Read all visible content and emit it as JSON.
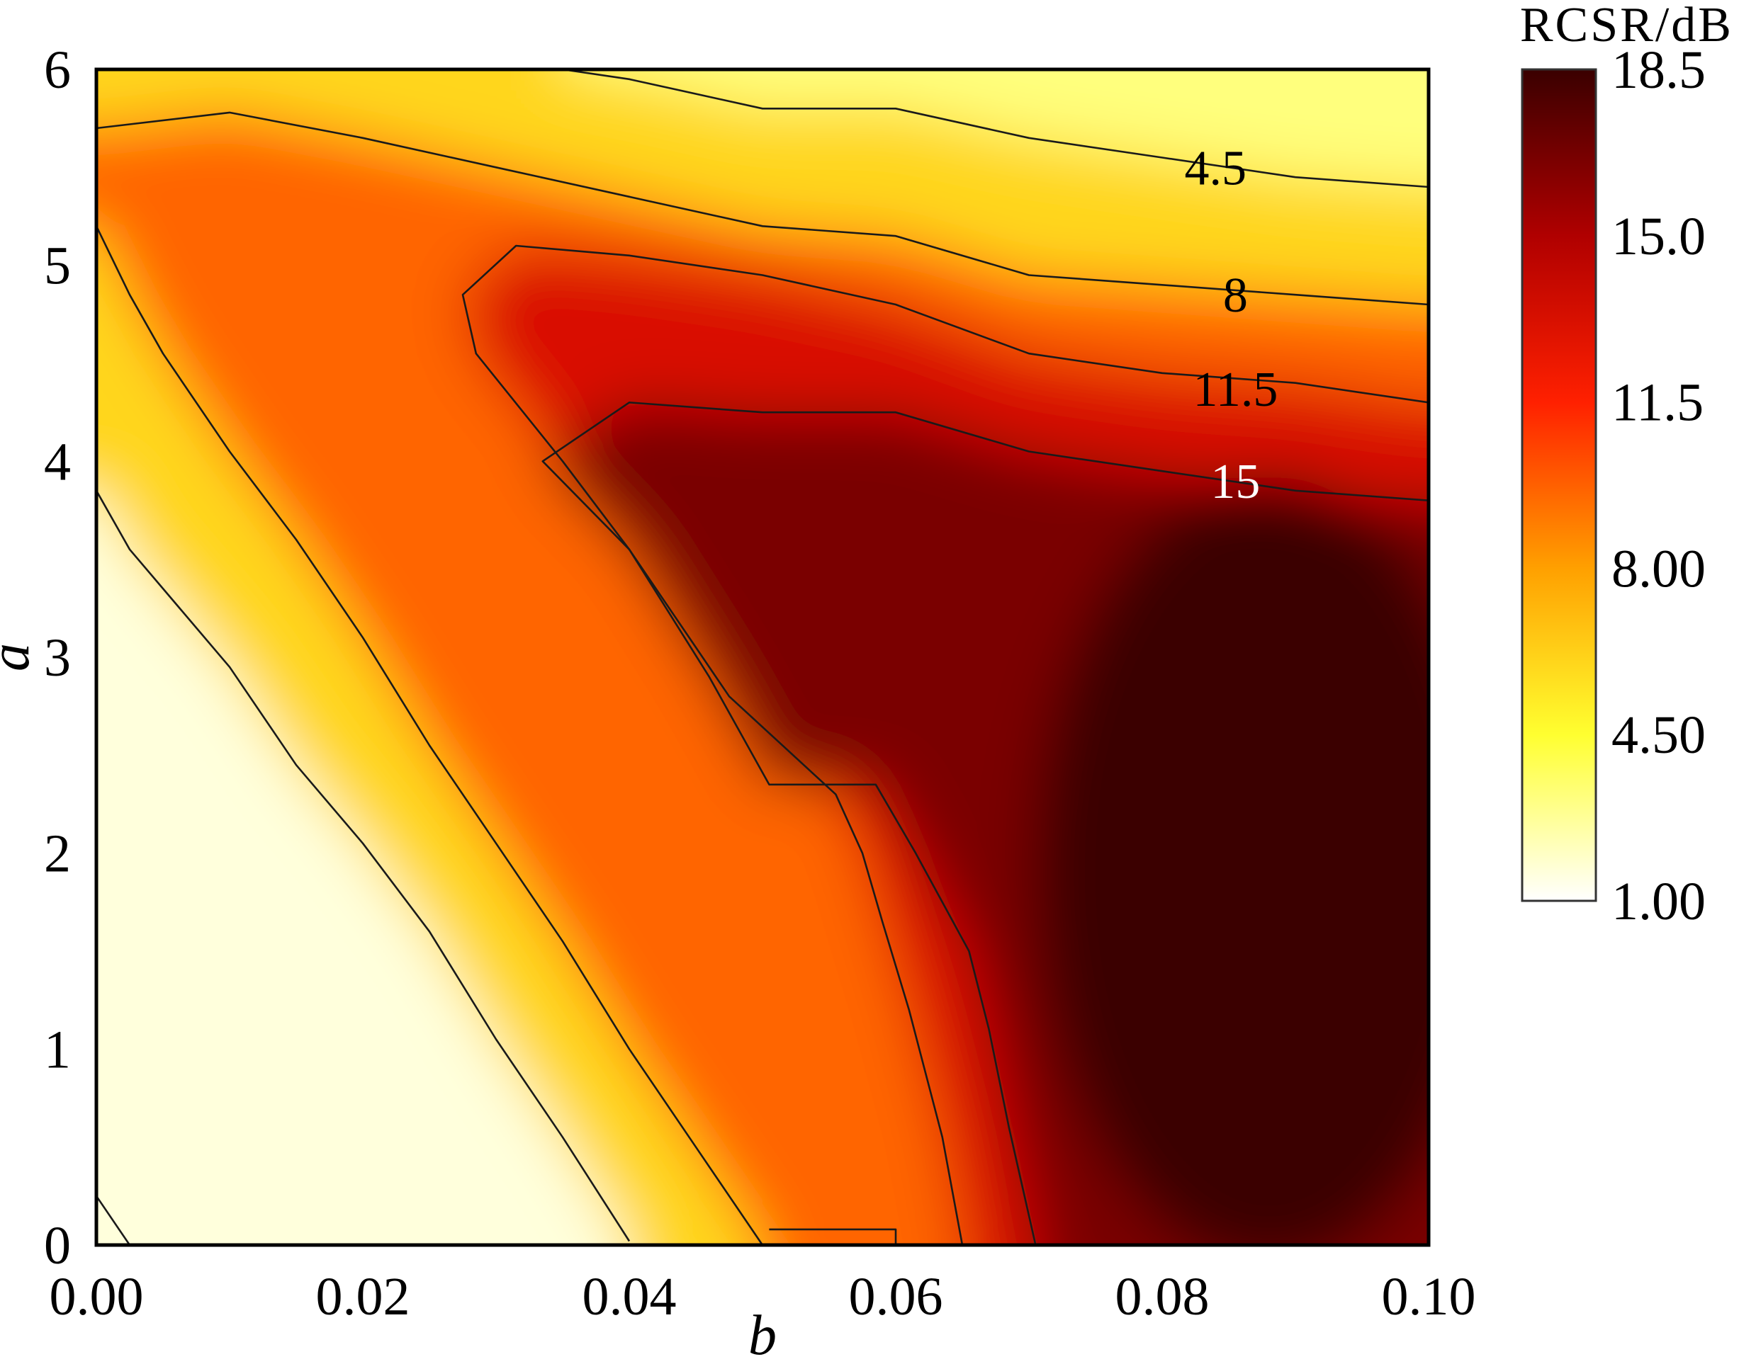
{
  "chart_data": {
    "type": "heatmap",
    "title": "",
    "xlabel": "b",
    "ylabel": "a",
    "xlim": [
      0,
      0.1
    ],
    "ylim": [
      0,
      6
    ],
    "x_ticks": [
      0,
      0.02,
      0.04,
      0.06,
      0.08,
      0.1
    ],
    "x_tick_labels": [
      "0.00",
      "0.02",
      "0.04",
      "0.06",
      "0.08",
      "0.10"
    ],
    "y_ticks": [
      0,
      1,
      2,
      3,
      4,
      5,
      6
    ],
    "y_tick_labels": [
      "0",
      "1",
      "2",
      "3",
      "4",
      "5",
      "6"
    ],
    "colorbar": {
      "title": "RCSR/dB",
      "range": [
        1,
        18.5
      ],
      "ticks": [
        1,
        4.5,
        8,
        11.5,
        15,
        18.5
      ],
      "tick_labels": [
        "1.00",
        "4.50",
        "8.00",
        "11.5",
        "15.0",
        "18.5"
      ],
      "colormap": [
        "#ffffff",
        "#ffff30",
        "#ffa000",
        "#ff2000",
        "#b00000",
        "#3a0000"
      ]
    },
    "contours": [
      {
        "level": 1,
        "label": "",
        "points": [
          [
            0,
            0.25
          ],
          [
            0.0025,
            0
          ]
        ]
      },
      {
        "level": 4.5,
        "label": "4.5",
        "label_at": [
          0.084,
          5.5
        ],
        "label_color": "#000000",
        "points": [
          [
            0,
            3.85
          ],
          [
            0.0025,
            3.55
          ],
          [
            0.01,
            2.95
          ],
          [
            0.015,
            2.45
          ],
          [
            0.02,
            2.05
          ],
          [
            0.025,
            1.6
          ],
          [
            0.03,
            1.05
          ],
          [
            0.035,
            0.55
          ],
          [
            0.04,
            0.02
          ]
        ]
      },
      {
        "level": 4.5,
        "label": "",
        "points": [
          [
            0.035,
            6.0
          ],
          [
            0.04,
            5.95
          ],
          [
            0.05,
            5.8
          ],
          [
            0.06,
            5.8
          ],
          [
            0.07,
            5.65
          ],
          [
            0.08,
            5.55
          ],
          [
            0.09,
            5.45
          ],
          [
            0.1,
            5.4
          ]
        ]
      },
      {
        "level": 8,
        "label": "8",
        "label_at": [
          0.0855,
          4.85
        ],
        "label_color": "#000000",
        "points": [
          [
            0,
            5.2
          ],
          [
            0.0025,
            4.85
          ],
          [
            0.005,
            4.55
          ],
          [
            0.01,
            4.05
          ],
          [
            0.015,
            3.6
          ],
          [
            0.02,
            3.1
          ],
          [
            0.025,
            2.55
          ],
          [
            0.03,
            2.05
          ],
          [
            0.035,
            1.55
          ],
          [
            0.04,
            1.0
          ],
          [
            0.045,
            0.5
          ],
          [
            0.05,
            0.0
          ]
        ]
      },
      {
        "level": 8,
        "label": "",
        "points": [
          [
            0,
            5.7
          ],
          [
            0.01,
            5.78
          ],
          [
            0.02,
            5.65
          ],
          [
            0.03,
            5.5
          ],
          [
            0.04,
            5.35
          ],
          [
            0.05,
            5.2
          ],
          [
            0.06,
            5.15
          ],
          [
            0.07,
            4.95
          ],
          [
            0.08,
            4.9
          ],
          [
            0.09,
            4.85
          ],
          [
            0.1,
            4.8
          ]
        ]
      },
      {
        "level": 11.5,
        "label": "11.5",
        "label_at": [
          0.0855,
          4.37
        ],
        "label_color": "#000000",
        "points": [
          [
            0.065,
            0.0
          ],
          [
            0.0635,
            0.55
          ],
          [
            0.061,
            1.2
          ],
          [
            0.059,
            1.65
          ],
          [
            0.0575,
            2.0
          ],
          [
            0.0555,
            2.3
          ],
          [
            0.0475,
            2.8
          ],
          [
            0.04,
            3.55
          ],
          [
            0.035,
            4.0
          ],
          [
            0.0285,
            4.55
          ],
          [
            0.0275,
            4.85
          ],
          [
            0.0315,
            5.1
          ],
          [
            0.04,
            5.05
          ],
          [
            0.05,
            4.95
          ],
          [
            0.06,
            4.8
          ],
          [
            0.07,
            4.55
          ],
          [
            0.08,
            4.45
          ],
          [
            0.09,
            4.4
          ],
          [
            0.1,
            4.3
          ]
        ]
      },
      {
        "level": 11.5,
        "label": "",
        "points": [
          [
            0.0505,
            0.08
          ],
          [
            0.06,
            0.08
          ],
          [
            0.06,
            0.0
          ]
        ]
      },
      {
        "level": 15,
        "label": "15",
        "label_at": [
          0.0855,
          3.9
        ],
        "label_color": "#ffffff",
        "points": [
          [
            0.0705,
            0.0
          ],
          [
            0.07,
            0.15
          ],
          [
            0.0685,
            0.6
          ],
          [
            0.067,
            1.1
          ],
          [
            0.0655,
            1.5
          ],
          [
            0.0615,
            2.0
          ],
          [
            0.0585,
            2.35
          ],
          [
            0.0505,
            2.35
          ],
          [
            0.046,
            2.9
          ],
          [
            0.04,
            3.55
          ],
          [
            0.0335,
            4.0
          ],
          [
            0.04,
            4.3
          ],
          [
            0.05,
            4.25
          ],
          [
            0.06,
            4.25
          ],
          [
            0.07,
            4.05
          ],
          [
            0.08,
            3.95
          ],
          [
            0.09,
            3.85
          ],
          [
            0.1,
            3.8
          ]
        ]
      }
    ]
  }
}
